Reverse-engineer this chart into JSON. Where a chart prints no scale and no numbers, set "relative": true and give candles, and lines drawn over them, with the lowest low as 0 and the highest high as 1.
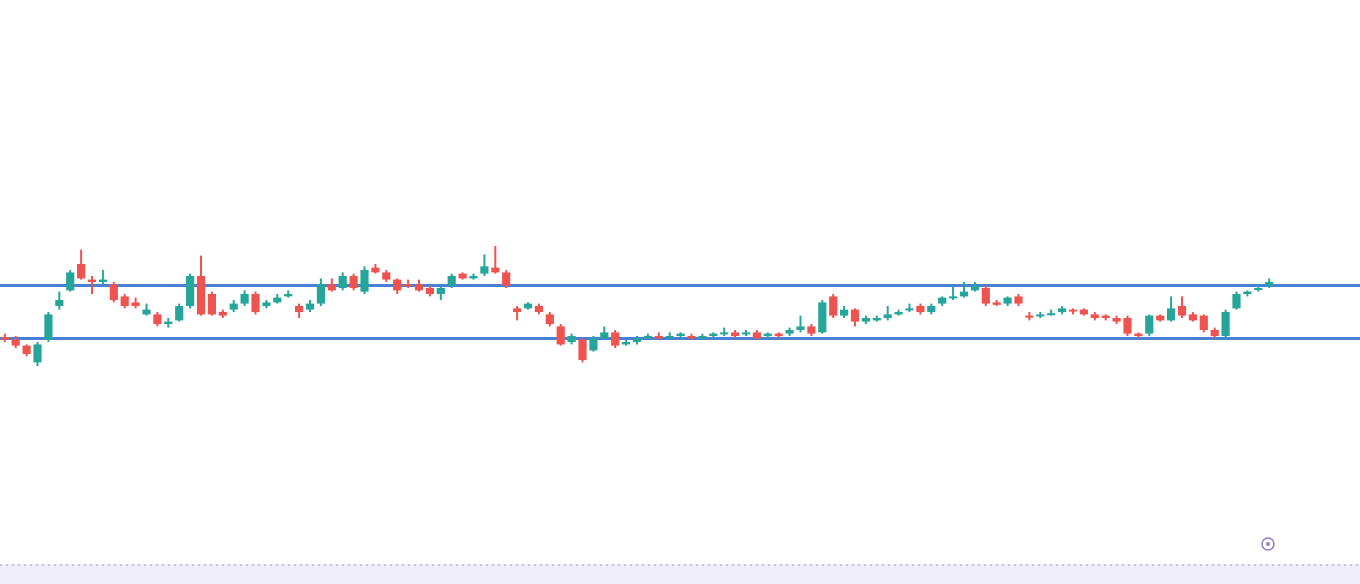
{
  "chart_data": {
    "type": "candlestick",
    "relative": true,
    "categories": [
      null,
      null,
      null,
      null,
      null,
      null,
      null,
      null,
      null,
      null,
      null,
      null,
      null,
      null,
      null,
      null,
      null,
      null,
      null,
      null,
      null,
      null,
      null,
      null,
      null,
      null,
      null,
      null,
      null,
      null,
      null,
      null,
      null,
      null,
      null,
      null,
      null,
      null,
      null,
      null,
      null,
      null,
      null,
      null,
      null,
      null,
      null,
      null,
      null,
      null,
      null,
      null,
      null,
      null,
      null,
      null,
      null,
      null,
      null,
      null,
      null,
      null,
      null,
      null,
      null,
      null,
      null,
      null,
      null,
      null,
      null,
      null,
      null,
      null,
      null,
      null,
      null,
      null,
      null,
      null,
      null,
      null,
      null,
      null,
      null,
      null,
      null,
      null,
      null,
      null,
      null,
      null,
      null,
      null,
      null,
      null,
      null,
      null,
      null,
      null,
      null,
      null,
      null,
      null,
      null,
      null,
      null,
      null,
      null,
      null,
      null,
      null,
      null,
      null,
      null,
      null,
      null
    ],
    "ohlc": [
      [
        0.24,
        0.27,
        0.2,
        0.22
      ],
      [
        0.22,
        0.25,
        0.15,
        0.17
      ],
      [
        0.17,
        0.18,
        0.08,
        0.1
      ],
      [
        0.03,
        0.2,
        0,
        0.18
      ],
      [
        0.22,
        0.45,
        0.2,
        0.43
      ],
      [
        0.5,
        0.62,
        0.47,
        0.55
      ],
      [
        0.63,
        0.8,
        0.62,
        0.78
      ],
      [
        0.85,
        0.97,
        0.72,
        0.73
      ],
      [
        0.72,
        0.75,
        0.6,
        0.7
      ],
      [
        0.7,
        0.8,
        0.68,
        0.72
      ],
      [
        0.68,
        0.7,
        0.53,
        0.55
      ],
      [
        0.58,
        0.6,
        0.48,
        0.5
      ],
      [
        0.53,
        0.57,
        0.48,
        0.5
      ],
      [
        0.43,
        0.52,
        0.42,
        0.47
      ],
      [
        0.43,
        0.45,
        0.33,
        0.35
      ],
      [
        0.35,
        0.4,
        0.32,
        0.37
      ],
      [
        0.38,
        0.52,
        0.37,
        0.5
      ],
      [
        0.5,
        0.77,
        0.48,
        0.75
      ],
      [
        0.75,
        0.92,
        0.42,
        0.43
      ],
      [
        0.6,
        0.62,
        0.42,
        0.43
      ],
      [
        0.45,
        0.47,
        0.4,
        0.42
      ],
      [
        0.47,
        0.55,
        0.45,
        0.52
      ],
      [
        0.52,
        0.63,
        0.5,
        0.6
      ],
      [
        0.6,
        0.62,
        0.43,
        0.45
      ],
      [
        0.5,
        0.55,
        0.48,
        0.53
      ],
      [
        0.53,
        0.6,
        0.52,
        0.57
      ],
      [
        0.58,
        0.63,
        0.57,
        0.6
      ],
      [
        0.5,
        0.52,
        0.4,
        0.45
      ],
      [
        0.47,
        0.55,
        0.45,
        0.52
      ],
      [
        0.52,
        0.73,
        0.5,
        0.68
      ],
      [
        0.68,
        0.73,
        0.62,
        0.63
      ],
      [
        0.65,
        0.78,
        0.63,
        0.75
      ],
      [
        0.75,
        0.77,
        0.63,
        0.65
      ],
      [
        0.62,
        0.83,
        0.6,
        0.8
      ],
      [
        0.82,
        0.85,
        0.77,
        0.78
      ],
      [
        0.78,
        0.8,
        0.7,
        0.72
      ],
      [
        0.72,
        0.73,
        0.6,
        0.63
      ],
      [
        0.68,
        0.72,
        0.65,
        0.67
      ],
      [
        0.68,
        0.72,
        0.62,
        0.63
      ],
      [
        0.65,
        0.67,
        0.58,
        0.6
      ],
      [
        0.6,
        0.67,
        0.55,
        0.65
      ],
      [
        0.67,
        0.77,
        0.65,
        0.75
      ],
      [
        0.77,
        0.78,
        0.72,
        0.73
      ],
      [
        0.73,
        0.77,
        0.72,
        0.75
      ],
      [
        0.77,
        0.93,
        0.75,
        0.83
      ],
      [
        0.82,
        1,
        0.77,
        0.78
      ],
      [
        0.78,
        0.8,
        0.65,
        0.67
      ],
      [
        0.48,
        0.5,
        0.38,
        0.45
      ],
      [
        0.48,
        0.53,
        0.47,
        0.52
      ],
      [
        0.5,
        0.52,
        0.43,
        0.45
      ],
      [
        0.43,
        0.45,
        0.33,
        0.35
      ],
      [
        0.33,
        0.35,
        0.17,
        0.18
      ],
      [
        0.2,
        0.27,
        0.18,
        0.25
      ],
      [
        0.22,
        0.23,
        0.03,
        0.05
      ],
      [
        0.13,
        0.25,
        0.12,
        0.23
      ],
      [
        0.23,
        0.33,
        0.22,
        0.28
      ],
      [
        0.28,
        0.3,
        0.15,
        0.17
      ],
      [
        0.18,
        0.22,
        0.17,
        0.2
      ],
      [
        0.2,
        0.25,
        0.18,
        0.23
      ],
      [
        0.23,
        0.27,
        0.22,
        0.25
      ],
      [
        0.25,
        0.28,
        0.22,
        0.23
      ],
      [
        0.24,
        0.28,
        0.23,
        0.25
      ],
      [
        0.25,
        0.28,
        0.23,
        0.27
      ],
      [
        0.25,
        0.27,
        0.22,
        0.23
      ],
      [
        0.23,
        0.27,
        0.22,
        0.25
      ],
      [
        0.25,
        0.28,
        0.23,
        0.27
      ],
      [
        0.27,
        0.32,
        0.25,
        0.28
      ],
      [
        0.28,
        0.3,
        0.23,
        0.25
      ],
      [
        0.27,
        0.3,
        0.25,
        0.28
      ],
      [
        0.28,
        0.3,
        0.22,
        0.23
      ],
      [
        0.25,
        0.28,
        0.23,
        0.27
      ],
      [
        0.27,
        0.28,
        0.23,
        0.25
      ],
      [
        0.27,
        0.32,
        0.25,
        0.3
      ],
      [
        0.3,
        0.42,
        0.28,
        0.33
      ],
      [
        0.33,
        0.35,
        0.25,
        0.27
      ],
      [
        0.28,
        0.55,
        0.27,
        0.53
      ],
      [
        0.58,
        0.6,
        0.4,
        0.42
      ],
      [
        0.42,
        0.5,
        0.4,
        0.47
      ],
      [
        0.47,
        0.48,
        0.33,
        0.37
      ],
      [
        0.37,
        0.42,
        0.35,
        0.4
      ],
      [
        0.38,
        0.42,
        0.37,
        0.4
      ],
      [
        0.4,
        0.5,
        0.38,
        0.43
      ],
      [
        0.43,
        0.47,
        0.42,
        0.45
      ],
      [
        0.47,
        0.52,
        0.45,
        0.48
      ],
      [
        0.5,
        0.52,
        0.43,
        0.45
      ],
      [
        0.45,
        0.52,
        0.43,
        0.5
      ],
      [
        0.52,
        0.58,
        0.5,
        0.57
      ],
      [
        0.57,
        0.67,
        0.55,
        0.58
      ],
      [
        0.58,
        0.7,
        0.57,
        0.62
      ],
      [
        0.63,
        0.7,
        0.62,
        0.67
      ],
      [
        0.65,
        0.67,
        0.5,
        0.52
      ],
      [
        0.53,
        0.55,
        0.5,
        0.51
      ],
      [
        0.52,
        0.58,
        0.5,
        0.57
      ],
      [
        0.58,
        0.6,
        0.5,
        0.52
      ],
      [
        0.42,
        0.45,
        0.38,
        0.41
      ],
      [
        0.42,
        0.45,
        0.4,
        0.43
      ],
      [
        0.43,
        0.47,
        0.42,
        0.44
      ],
      [
        0.45,
        0.5,
        0.43,
        0.48
      ],
      [
        0.47,
        0.48,
        0.43,
        0.46
      ],
      [
        0.47,
        0.48,
        0.42,
        0.43
      ],
      [
        0.43,
        0.45,
        0.38,
        0.4
      ],
      [
        0.42,
        0.43,
        0.38,
        0.4
      ],
      [
        0.4,
        0.42,
        0.35,
        0.37
      ],
      [
        0.4,
        0.42,
        0.25,
        0.27
      ],
      [
        0.27,
        0.28,
        0.23,
        0.25
      ],
      [
        0.27,
        0.43,
        0.25,
        0.42
      ],
      [
        0.42,
        0.43,
        0.37,
        0.38
      ],
      [
        0.38,
        0.58,
        0.37,
        0.48
      ],
      [
        0.5,
        0.58,
        0.4,
        0.42
      ],
      [
        0.43,
        0.45,
        0.37,
        0.38
      ],
      [
        0.42,
        0.43,
        0.28,
        0.3
      ],
      [
        0.3,
        0.32,
        0.23,
        0.25
      ],
      [
        0.25,
        0.47,
        0.23,
        0.45
      ],
      [
        0.48,
        0.62,
        0.47,
        0.6
      ],
      [
        0.6,
        0.63,
        0.58,
        0.62
      ],
      [
        0.64,
        0.67,
        0.62,
        0.65
      ],
      [
        0.67,
        0.73,
        0.65,
        0.7
      ]
    ],
    "ref_lines": [
      {
        "axis": "y",
        "value": 0.67,
        "color": "#4a7fd6"
      },
      {
        "axis": "y",
        "value": 0.23,
        "color": "#4a7fd6"
      }
    ]
  }
}
